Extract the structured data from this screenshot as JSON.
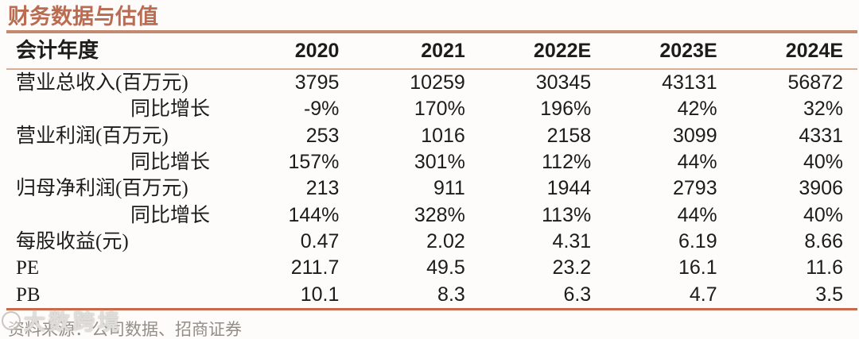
{
  "title": {
    "text": "财务数据与估值"
  },
  "table": {
    "header": {
      "label": "会计年度",
      "years": [
        "2020",
        "2021",
        "2022E",
        "2023E",
        "2024E"
      ]
    },
    "rows": [
      {
        "label": "营业总收入(百万元)",
        "values": [
          "3795",
          "10259",
          "30345",
          "43131",
          "56872"
        ]
      },
      {
        "label": "同比增长",
        "values": [
          "-9%",
          "170%",
          "196%",
          "42%",
          "32%"
        ]
      },
      {
        "label": "营业利润(百万元)",
        "values": [
          "253",
          "1016",
          "2158",
          "3099",
          "4331"
        ]
      },
      {
        "label": "同比增长",
        "values": [
          "157%",
          "301%",
          "112%",
          "44%",
          "40%"
        ]
      },
      {
        "label": "归母净利润(百万元)",
        "values": [
          "213",
          "911",
          "1944",
          "2793",
          "3906"
        ]
      },
      {
        "label": "同比增长",
        "values": [
          "144%",
          "328%",
          "113%",
          "44%",
          "40%"
        ]
      },
      {
        "label": "每股收益(元)",
        "values": [
          "0.47",
          "2.02",
          "4.31",
          "6.19",
          "8.66"
        ]
      },
      {
        "label": "PE",
        "values": [
          "211.7",
          "49.5",
          "23.2",
          "16.1",
          "11.6"
        ]
      },
      {
        "label": "PB",
        "values": [
          "10.1",
          "8.3",
          "6.3",
          "4.7",
          "3.5"
        ]
      }
    ]
  },
  "footer": {
    "source": "资料来源：公司数据、招商证券"
  },
  "watermark": {
    "text": "大数跨境"
  },
  "colors": {
    "title": "#BA6B50",
    "rule_top": "#C28B70",
    "rule_thin": "#D9AE94",
    "rule_bottom": "#C8694C",
    "text": "#1C1C1C",
    "footer_text": "#938F88"
  }
}
